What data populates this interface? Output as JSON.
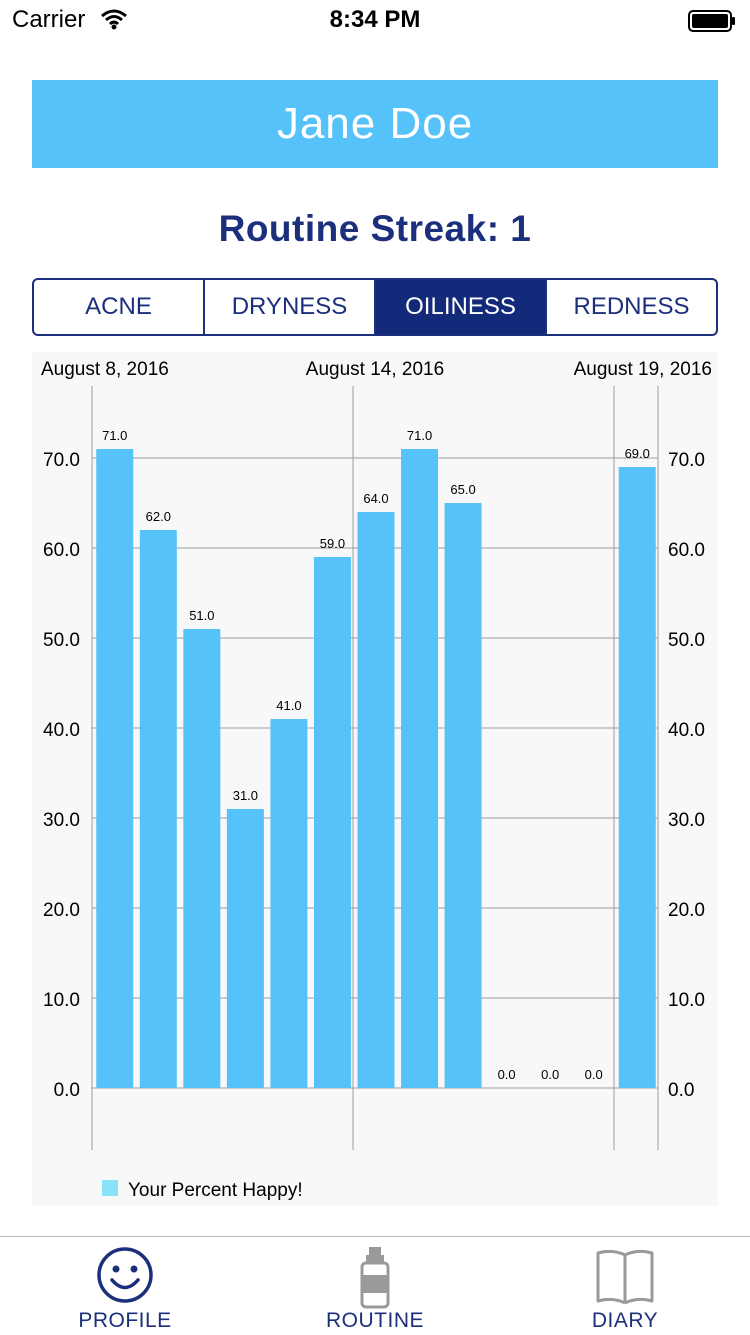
{
  "status_bar": {
    "carrier": "Carrier",
    "time": "8:34 PM"
  },
  "profile": {
    "name": "Jane Doe",
    "streak_text": "Routine Streak: 1"
  },
  "segments": [
    {
      "label": "ACNE",
      "selected": false
    },
    {
      "label": "DRYNESS",
      "selected": false
    },
    {
      "label": "OILINESS",
      "selected": true
    },
    {
      "label": "REDNESS",
      "selected": false
    }
  ],
  "colors": {
    "accent": "#56c2fa",
    "navy": "#1c2f7c",
    "bar": "#56c2fa",
    "legend": "#88e3f8"
  },
  "chart_data": {
    "type": "bar",
    "date_labels": [
      "August 8, 2016",
      "August 14, 2016",
      "August 19, 2016"
    ],
    "values": [
      71.0,
      62.0,
      51.0,
      31.0,
      41.0,
      59.0,
      64.0,
      71.0,
      65.0,
      0.0,
      0.0,
      0.0,
      69.0
    ],
    "value_labels": [
      "71.0",
      "62.0",
      "51.0",
      "31.0",
      "41.0",
      "59.0",
      "64.0",
      "71.0",
      "65.0",
      "0.0",
      "0.0",
      "0.0",
      "69.0"
    ],
    "y_ticks": [
      "0.0",
      "10.0",
      "20.0",
      "30.0",
      "40.0",
      "50.0",
      "60.0",
      "70.0"
    ],
    "ylim": [
      0,
      70
    ],
    "legend": {
      "label": "Your Percent Happy!",
      "position": "bottom-left"
    },
    "grid": true
  },
  "tabs": [
    {
      "label": "PROFILE",
      "icon": "smiley-icon",
      "active": true
    },
    {
      "label": "ROUTINE",
      "icon": "bottle-icon",
      "active": false
    },
    {
      "label": "DIARY",
      "icon": "book-icon",
      "active": false
    }
  ]
}
